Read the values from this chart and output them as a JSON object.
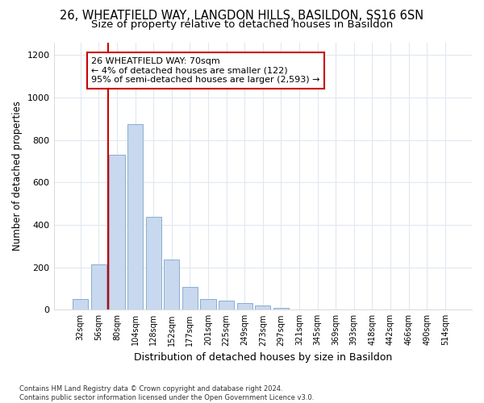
{
  "title_line1": "26, WHEATFIELD WAY, LANGDON HILLS, BASILDON, SS16 6SN",
  "title_line2": "Size of property relative to detached houses in Basildon",
  "xlabel": "Distribution of detached houses by size in Basildon",
  "ylabel": "Number of detached properties",
  "bar_color": "#c8d8ee",
  "bar_edge_color": "#8aaed0",
  "categories": [
    "32sqm",
    "56sqm",
    "80sqm",
    "104sqm",
    "128sqm",
    "152sqm",
    "177sqm",
    "201sqm",
    "225sqm",
    "249sqm",
    "273sqm",
    "297sqm",
    "321sqm",
    "345sqm",
    "369sqm",
    "393sqm",
    "418sqm",
    "442sqm",
    "466sqm",
    "490sqm",
    "514sqm"
  ],
  "values": [
    52,
    213,
    730,
    875,
    438,
    235,
    108,
    50,
    42,
    30,
    20,
    10,
    0,
    0,
    0,
    0,
    0,
    0,
    0,
    0,
    0
  ],
  "vline_color": "#cc0000",
  "annotation_text": "26 WHEATFIELD WAY: 70sqm\n← 4% of detached houses are smaller (122)\n95% of semi-detached houses are larger (2,593) →",
  "annotation_box_color": "white",
  "annotation_box_edge": "#cc0000",
  "ylim": [
    0,
    1260
  ],
  "yticks": [
    0,
    200,
    400,
    600,
    800,
    1000,
    1200
  ],
  "footnote": "Contains HM Land Registry data © Crown copyright and database right 2024.\nContains public sector information licensed under the Open Government Licence v3.0.",
  "background_color": "#ffffff",
  "grid_color": "#e0e8f0",
  "title_fontsize": 10.5,
  "subtitle_fontsize": 9.5,
  "bar_width": 0.85
}
